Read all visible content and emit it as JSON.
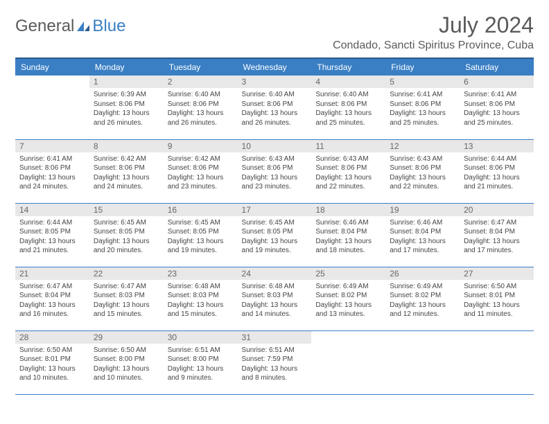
{
  "logo": {
    "part1": "General",
    "part2": "Blue"
  },
  "title": "July 2024",
  "location": "Condado, Sancti Spiritus Province, Cuba",
  "colors": {
    "header_bg": "#3a7fc4",
    "header_border_top": "#2c5a8c",
    "row_border": "#3a7fc4",
    "daynum_bg": "#e8e8e8",
    "text_gray": "#5a5a5a",
    "logo_blue": "#3a7fc4"
  },
  "weekdays": [
    "Sunday",
    "Monday",
    "Tuesday",
    "Wednesday",
    "Thursday",
    "Friday",
    "Saturday"
  ],
  "weeks": [
    [
      {
        "day": "",
        "lines": []
      },
      {
        "day": "1",
        "lines": [
          "Sunrise: 6:39 AM",
          "Sunset: 8:06 PM",
          "Daylight: 13 hours",
          "and 26 minutes."
        ]
      },
      {
        "day": "2",
        "lines": [
          "Sunrise: 6:40 AM",
          "Sunset: 8:06 PM",
          "Daylight: 13 hours",
          "and 26 minutes."
        ]
      },
      {
        "day": "3",
        "lines": [
          "Sunrise: 6:40 AM",
          "Sunset: 8:06 PM",
          "Daylight: 13 hours",
          "and 26 minutes."
        ]
      },
      {
        "day": "4",
        "lines": [
          "Sunrise: 6:40 AM",
          "Sunset: 8:06 PM",
          "Daylight: 13 hours",
          "and 25 minutes."
        ]
      },
      {
        "day": "5",
        "lines": [
          "Sunrise: 6:41 AM",
          "Sunset: 8:06 PM",
          "Daylight: 13 hours",
          "and 25 minutes."
        ]
      },
      {
        "day": "6",
        "lines": [
          "Sunrise: 6:41 AM",
          "Sunset: 8:06 PM",
          "Daylight: 13 hours",
          "and 25 minutes."
        ]
      }
    ],
    [
      {
        "day": "7",
        "lines": [
          "Sunrise: 6:41 AM",
          "Sunset: 8:06 PM",
          "Daylight: 13 hours",
          "and 24 minutes."
        ]
      },
      {
        "day": "8",
        "lines": [
          "Sunrise: 6:42 AM",
          "Sunset: 8:06 PM",
          "Daylight: 13 hours",
          "and 24 minutes."
        ]
      },
      {
        "day": "9",
        "lines": [
          "Sunrise: 6:42 AM",
          "Sunset: 8:06 PM",
          "Daylight: 13 hours",
          "and 23 minutes."
        ]
      },
      {
        "day": "10",
        "lines": [
          "Sunrise: 6:43 AM",
          "Sunset: 8:06 PM",
          "Daylight: 13 hours",
          "and 23 minutes."
        ]
      },
      {
        "day": "11",
        "lines": [
          "Sunrise: 6:43 AM",
          "Sunset: 8:06 PM",
          "Daylight: 13 hours",
          "and 22 minutes."
        ]
      },
      {
        "day": "12",
        "lines": [
          "Sunrise: 6:43 AM",
          "Sunset: 8:06 PM",
          "Daylight: 13 hours",
          "and 22 minutes."
        ]
      },
      {
        "day": "13",
        "lines": [
          "Sunrise: 6:44 AM",
          "Sunset: 8:06 PM",
          "Daylight: 13 hours",
          "and 21 minutes."
        ]
      }
    ],
    [
      {
        "day": "14",
        "lines": [
          "Sunrise: 6:44 AM",
          "Sunset: 8:05 PM",
          "Daylight: 13 hours",
          "and 21 minutes."
        ]
      },
      {
        "day": "15",
        "lines": [
          "Sunrise: 6:45 AM",
          "Sunset: 8:05 PM",
          "Daylight: 13 hours",
          "and 20 minutes."
        ]
      },
      {
        "day": "16",
        "lines": [
          "Sunrise: 6:45 AM",
          "Sunset: 8:05 PM",
          "Daylight: 13 hours",
          "and 19 minutes."
        ]
      },
      {
        "day": "17",
        "lines": [
          "Sunrise: 6:45 AM",
          "Sunset: 8:05 PM",
          "Daylight: 13 hours",
          "and 19 minutes."
        ]
      },
      {
        "day": "18",
        "lines": [
          "Sunrise: 6:46 AM",
          "Sunset: 8:04 PM",
          "Daylight: 13 hours",
          "and 18 minutes."
        ]
      },
      {
        "day": "19",
        "lines": [
          "Sunrise: 6:46 AM",
          "Sunset: 8:04 PM",
          "Daylight: 13 hours",
          "and 17 minutes."
        ]
      },
      {
        "day": "20",
        "lines": [
          "Sunrise: 6:47 AM",
          "Sunset: 8:04 PM",
          "Daylight: 13 hours",
          "and 17 minutes."
        ]
      }
    ],
    [
      {
        "day": "21",
        "lines": [
          "Sunrise: 6:47 AM",
          "Sunset: 8:04 PM",
          "Daylight: 13 hours",
          "and 16 minutes."
        ]
      },
      {
        "day": "22",
        "lines": [
          "Sunrise: 6:47 AM",
          "Sunset: 8:03 PM",
          "Daylight: 13 hours",
          "and 15 minutes."
        ]
      },
      {
        "day": "23",
        "lines": [
          "Sunrise: 6:48 AM",
          "Sunset: 8:03 PM",
          "Daylight: 13 hours",
          "and 15 minutes."
        ]
      },
      {
        "day": "24",
        "lines": [
          "Sunrise: 6:48 AM",
          "Sunset: 8:03 PM",
          "Daylight: 13 hours",
          "and 14 minutes."
        ]
      },
      {
        "day": "25",
        "lines": [
          "Sunrise: 6:49 AM",
          "Sunset: 8:02 PM",
          "Daylight: 13 hours",
          "and 13 minutes."
        ]
      },
      {
        "day": "26",
        "lines": [
          "Sunrise: 6:49 AM",
          "Sunset: 8:02 PM",
          "Daylight: 13 hours",
          "and 12 minutes."
        ]
      },
      {
        "day": "27",
        "lines": [
          "Sunrise: 6:50 AM",
          "Sunset: 8:01 PM",
          "Daylight: 13 hours",
          "and 11 minutes."
        ]
      }
    ],
    [
      {
        "day": "28",
        "lines": [
          "Sunrise: 6:50 AM",
          "Sunset: 8:01 PM",
          "Daylight: 13 hours",
          "and 10 minutes."
        ]
      },
      {
        "day": "29",
        "lines": [
          "Sunrise: 6:50 AM",
          "Sunset: 8:00 PM",
          "Daylight: 13 hours",
          "and 10 minutes."
        ]
      },
      {
        "day": "30",
        "lines": [
          "Sunrise: 6:51 AM",
          "Sunset: 8:00 PM",
          "Daylight: 13 hours",
          "and 9 minutes."
        ]
      },
      {
        "day": "31",
        "lines": [
          "Sunrise: 6:51 AM",
          "Sunset: 7:59 PM",
          "Daylight: 13 hours",
          "and 8 minutes."
        ]
      },
      {
        "day": "",
        "lines": []
      },
      {
        "day": "",
        "lines": []
      },
      {
        "day": "",
        "lines": []
      }
    ]
  ]
}
